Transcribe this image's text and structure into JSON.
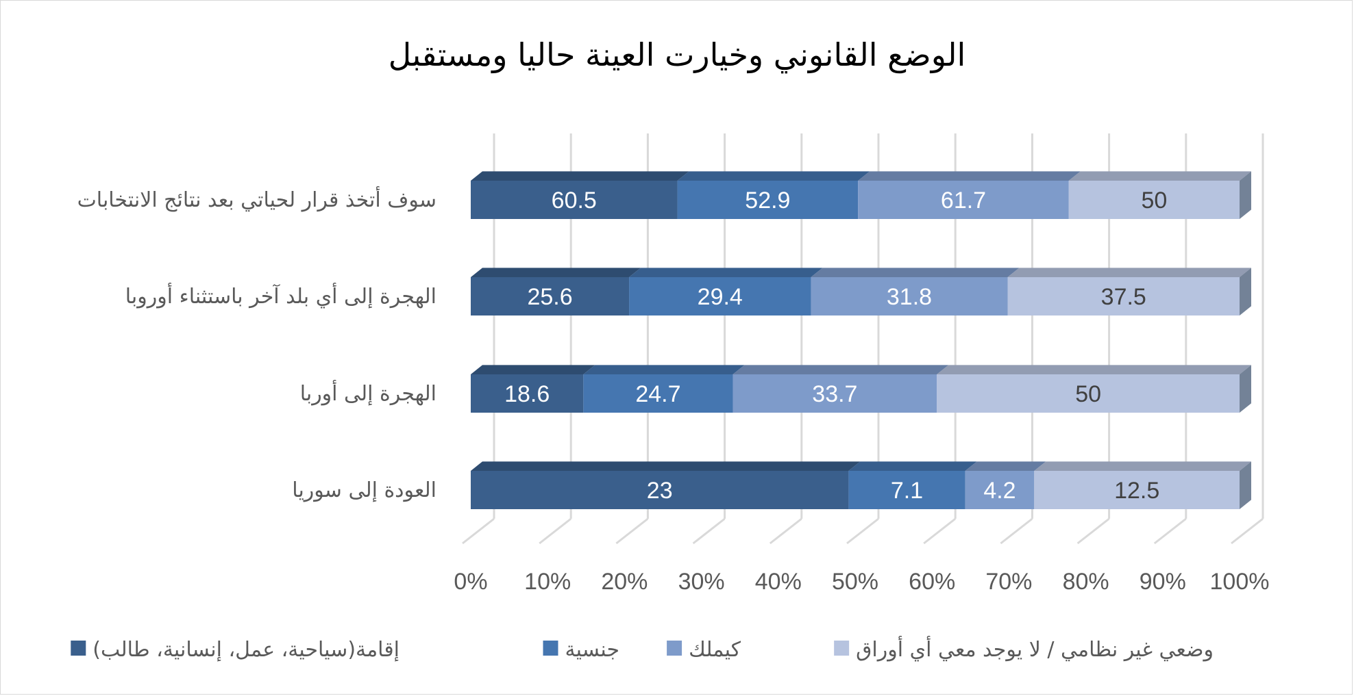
{
  "chart_data": {
    "type": "bar",
    "orientation": "horizontal",
    "stacked": "percent",
    "title": "الوضع القانوني وخيارت العينة حاليا ومستقبل",
    "categories": [
      "العودة إلى سوريا",
      "الهجرة إلى أوربا",
      "الهجرة إلى أي بلد آخر باستثناء أوروبا",
      "سوف أتخذ قرار لحياتي بعد نتائج الانتخابات"
    ],
    "series": [
      {
        "name": "إقامة(سياحية، عمل، إنسانية، طالب)",
        "values": [
          23,
          18.6,
          25.6,
          60.5
        ],
        "color": "#3a5f8c",
        "label_color": "#ffffff"
      },
      {
        "name": "جنسية",
        "values": [
          7.1,
          24.7,
          29.4,
          52.9
        ],
        "color": "#4576b0",
        "label_color": "#ffffff"
      },
      {
        "name": "كيملك",
        "values": [
          4.2,
          33.7,
          31.8,
          61.7
        ],
        "color": "#7e9bca",
        "label_color": "#ffffff"
      },
      {
        "name": "وضعي غير نظامي / لا يوجد معي أي أوراق",
        "values": [
          12.5,
          50,
          37.5,
          50
        ],
        "color": "#b6c3df",
        "label_color": "#404040"
      }
    ],
    "x_ticks": [
      "0%",
      "10%",
      "20%",
      "30%",
      "40%",
      "50%",
      "60%",
      "70%",
      "80%",
      "90%",
      "100%"
    ],
    "xlim": [
      0,
      100
    ],
    "grid": true,
    "legend_position": "bottom",
    "three_d": true
  }
}
